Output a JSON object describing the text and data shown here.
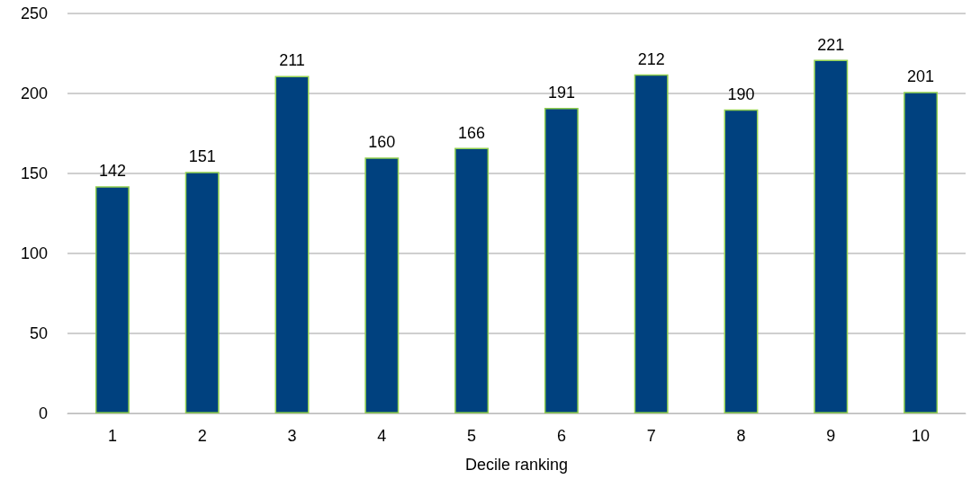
{
  "chart_data": {
    "type": "bar",
    "xlabel": "Decile ranking",
    "categories": [
      "1",
      "2",
      "3",
      "4",
      "5",
      "6",
      "7",
      "8",
      "9",
      "10"
    ],
    "values": [
      142,
      151,
      211,
      160,
      166,
      191,
      212,
      190,
      221,
      201
    ],
    "color": "#00417f",
    "ylim": [
      0,
      250
    ],
    "yticks": [
      0,
      50,
      100,
      150,
      200,
      250
    ],
    "grid": "y",
    "data_labels": true
  }
}
